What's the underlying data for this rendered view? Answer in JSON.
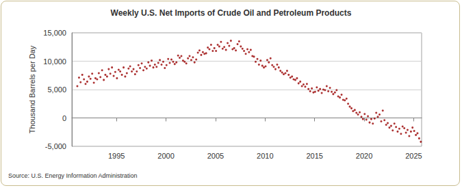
{
  "chart_data": {
    "type": "scatter",
    "title": "Weekly U.S. Net Imports of Crude Oil and Petroleum Products",
    "y_label": "Thousand Barrels per Day",
    "source": "Source: U.S. Energy Information Administration",
    "color": "#990000",
    "marker": "circle",
    "grid": true,
    "xlim": [
      1990.5,
      2025.8
    ],
    "xticks": [
      1995,
      2000,
      2005,
      2010,
      2015,
      2020,
      2025
    ],
    "ylim": [
      -5000,
      15000
    ],
    "yticks": [
      {
        "value": -5000,
        "label": "-5,000"
      },
      0,
      {
        "value": 5000,
        "label": "5,000"
      },
      {
        "value": 10000,
        "label": "10,000"
      },
      {
        "value": 15000,
        "label": "15,000"
      }
    ],
    "x": [
      1991.05,
      1991.22,
      1991.38,
      1991.55,
      1991.72,
      1991.88,
      1992.05,
      1992.22,
      1992.38,
      1992.55,
      1992.72,
      1992.88,
      1993.05,
      1993.22,
      1993.38,
      1993.55,
      1993.72,
      1993.88,
      1994.05,
      1994.22,
      1994.38,
      1994.55,
      1994.72,
      1994.88,
      1995.05,
      1995.22,
      1995.38,
      1995.55,
      1995.72,
      1995.88,
      1996.05,
      1996.22,
      1996.38,
      1996.55,
      1996.72,
      1996.88,
      1997.05,
      1997.22,
      1997.38,
      1997.55,
      1997.72,
      1997.88,
      1998.05,
      1998.22,
      1998.38,
      1998.55,
      1998.72,
      1998.88,
      1999.05,
      1999.22,
      1999.38,
      1999.55,
      1999.72,
      1999.88,
      2000.05,
      2000.22,
      2000.38,
      2000.55,
      2000.72,
      2000.88,
      2001.05,
      2001.22,
      2001.38,
      2001.55,
      2001.72,
      2001.88,
      2002.05,
      2002.22,
      2002.38,
      2002.55,
      2002.72,
      2002.88,
      2003.05,
      2003.22,
      2003.38,
      2003.55,
      2003.72,
      2003.88,
      2004.05,
      2004.22,
      2004.38,
      2004.55,
      2004.72,
      2004.88,
      2005.05,
      2005.22,
      2005.38,
      2005.55,
      2005.72,
      2005.88,
      2006.05,
      2006.22,
      2006.38,
      2006.55,
      2006.72,
      2006.88,
      2007.05,
      2007.22,
      2007.38,
      2007.55,
      2007.72,
      2007.88,
      2008.05,
      2008.22,
      2008.38,
      2008.55,
      2008.72,
      2008.88,
      2009.05,
      2009.22,
      2009.38,
      2009.55,
      2009.72,
      2009.88,
      2010.05,
      2010.22,
      2010.38,
      2010.55,
      2010.72,
      2010.88,
      2011.05,
      2011.22,
      2011.38,
      2011.55,
      2011.72,
      2011.88,
      2012.05,
      2012.22,
      2012.38,
      2012.55,
      2012.72,
      2012.88,
      2013.05,
      2013.22,
      2013.38,
      2013.55,
      2013.72,
      2013.88,
      2014.05,
      2014.22,
      2014.38,
      2014.55,
      2014.72,
      2014.88,
      2015.05,
      2015.22,
      2015.38,
      2015.55,
      2015.72,
      2015.88,
      2016.05,
      2016.22,
      2016.38,
      2016.55,
      2016.72,
      2016.88,
      2017.05,
      2017.22,
      2017.38,
      2017.55,
      2017.72,
      2017.88,
      2018.05,
      2018.22,
      2018.38,
      2018.55,
      2018.72,
      2018.88,
      2019.05,
      2019.22,
      2019.38,
      2019.55,
      2019.72,
      2019.88,
      2020.05,
      2020.22,
      2020.38,
      2020.55,
      2020.72,
      2020.88,
      2021.05,
      2021.22,
      2021.38,
      2021.55,
      2021.72,
      2021.88,
      2022.05,
      2022.22,
      2022.38,
      2022.55,
      2022.72,
      2022.88,
      2023.05,
      2023.22,
      2023.38,
      2023.55,
      2023.72,
      2023.88,
      2024.05,
      2024.22,
      2024.38,
      2024.55,
      2024.72,
      2024.88,
      2025.05,
      2025.22,
      2025.38,
      2025.55,
      2025.72
    ],
    "values": [
      5600,
      7100,
      6300,
      7600,
      6800,
      6000,
      6400,
      7300,
      6900,
      7800,
      6200,
      7000,
      6800,
      7900,
      7200,
      8400,
      6700,
      7600,
      7300,
      8600,
      7800,
      8900,
      7400,
      8100,
      7000,
      8500,
      8200,
      7600,
      8900,
      7300,
      7900,
      8700,
      9100,
      8200,
      8600,
      7700,
      8200,
      9300,
      8800,
      9600,
      8400,
      9000,
      8700,
      9800,
      9200,
      10100,
      8900,
      9400,
      9000,
      9700,
      10200,
      9400,
      9900,
      8800,
      9300,
      10400,
      9700,
      10300,
      9900,
      9500,
      9800,
      11000,
      10600,
      10900,
      10100,
      9900,
      9600,
      10500,
      10900,
      10200,
      10700,
      9800,
      10300,
      11500,
      11900,
      11100,
      11600,
      11300,
      11400,
      12400,
      12100,
      12900,
      11800,
      12300,
      11800,
      12900,
      12600,
      13400,
      12200,
      12500,
      12000,
      13200,
      12700,
      13600,
      12100,
      12300,
      11900,
      13000,
      13500,
      12600,
      12200,
      11800,
      11300,
      12100,
      11600,
      12000,
      10900,
      10800,
      9900,
      10400,
      9400,
      10100,
      9200,
      8900,
      9100,
      10200,
      9800,
      10500,
      9300,
      9000,
      8600,
      9400,
      8900,
      8300,
      8000,
      7700,
      7900,
      8300,
      7600,
      7100,
      7300,
      6800,
      6700,
      7000,
      6100,
      6400,
      5600,
      5900,
      5500,
      6000,
      5100,
      4700,
      5200,
      4500,
      4600,
      5400,
      4800,
      5100,
      4400,
      5000,
      4900,
      5600,
      4700,
      5300,
      4600,
      4200,
      4500,
      4900,
      3800,
      3600,
      4100,
      3200,
      3100,
      3400,
      2500,
      2000,
      1700,
      1200,
      1400,
      900,
      600,
      1000,
      200,
      -200,
      700,
      -300,
      300,
      -800,
      -200,
      -1000,
      -100,
      900,
      200,
      600,
      -600,
      1300,
      -400,
      -1200,
      -900,
      -1700,
      -1400,
      -2200,
      -1000,
      -1600,
      -2400,
      -1900,
      -2800,
      -1500,
      -1800,
      -2600,
      -2100,
      -3200,
      -2400,
      -1700,
      -2300,
      -3000,
      -2700,
      -3600,
      -4200
    ]
  }
}
